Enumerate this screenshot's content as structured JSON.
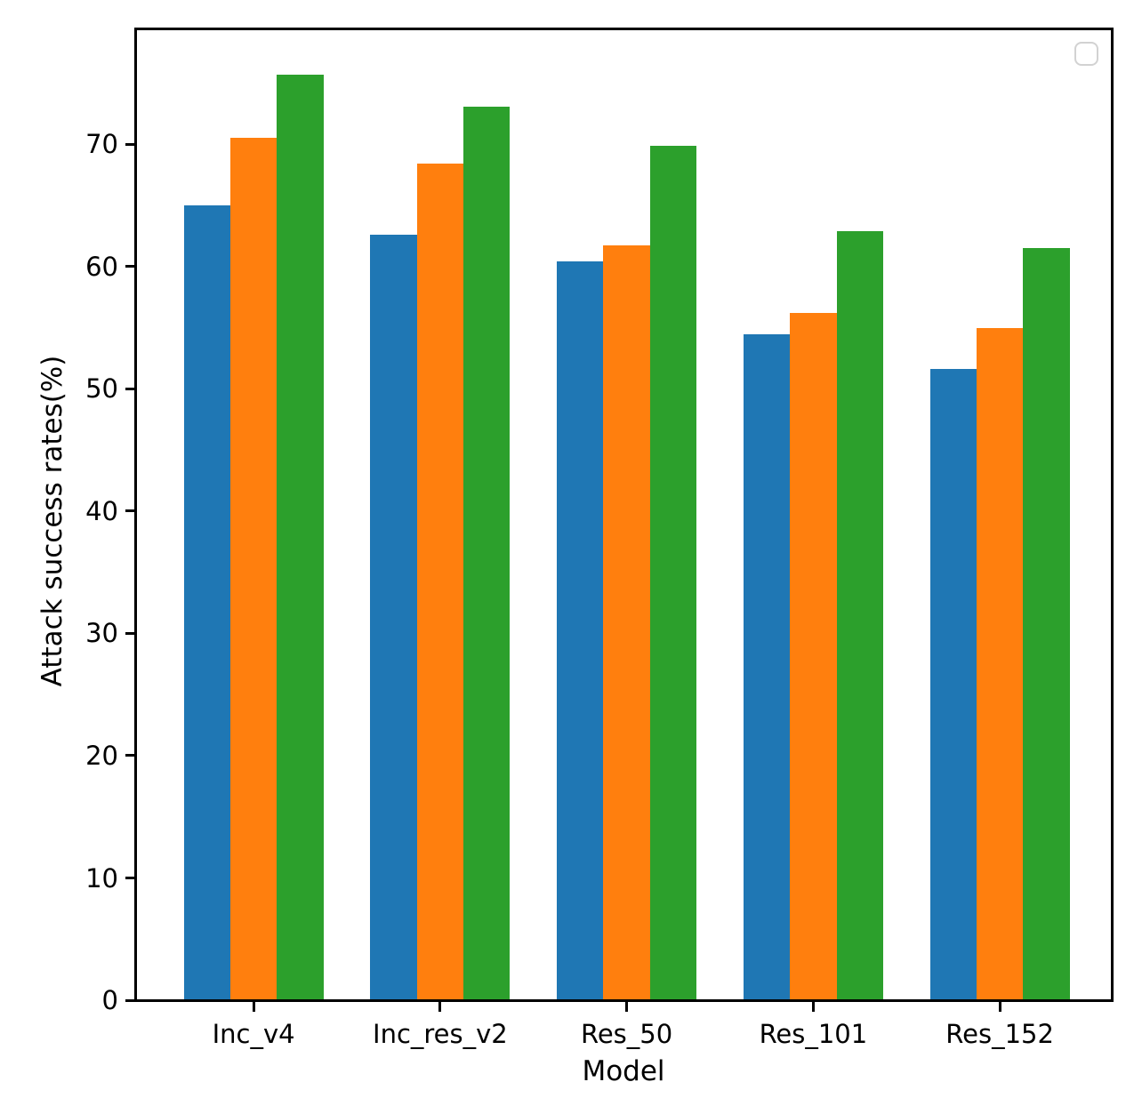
{
  "chart_data": {
    "type": "bar",
    "title": "",
    "xlabel": "Model",
    "ylabel": "Attack success rates(%)",
    "categories": [
      "Inc_v4",
      "Inc_res_v2",
      "Res_50",
      "Res_101",
      "Res_152"
    ],
    "series": [
      {
        "name": "",
        "color": "#1f77b4",
        "values": [
          65.0,
          62.6,
          60.4,
          54.5,
          51.6
        ]
      },
      {
        "name": "",
        "color": "#ff7f0e",
        "values": [
          70.5,
          68.4,
          61.7,
          56.2,
          55.0
        ]
      },
      {
        "name": "",
        "color": "#2ca02c",
        "values": [
          75.7,
          73.1,
          69.9,
          62.9,
          61.5
        ]
      }
    ],
    "yticks": [
      0,
      10,
      20,
      30,
      40,
      50,
      60,
      70
    ],
    "ylim": [
      0,
      79.4
    ],
    "xlim": [
      -0.63,
      4.6
    ],
    "bar_width": 0.25,
    "grid": false,
    "legend": {
      "position": "upper right",
      "entries": []
    },
    "axis_color": "#000000",
    "background_color": "#ffffff"
  }
}
